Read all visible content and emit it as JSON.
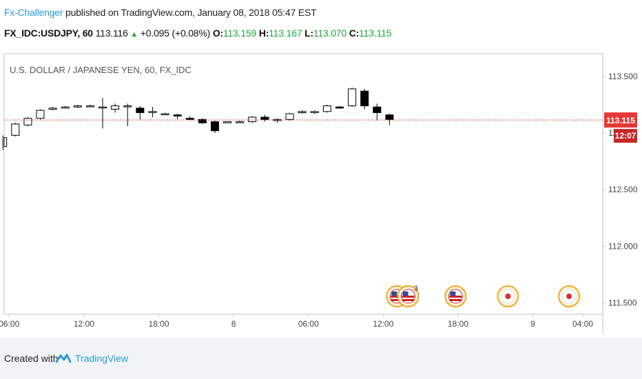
{
  "header": {
    "author": "Fx-Challenger",
    "published_text": "published on TradingView.com, January 08, 2018 05:47 EST"
  },
  "ticker": {
    "symbol_interval": "FX_IDC:USDJPY, 60",
    "last": "113.116",
    "change_arrow": "▲",
    "change": "+0.095 (+0.08%)",
    "o_label": "O:",
    "o_value": "113.159",
    "h_label": "H:",
    "h_value": "113.167",
    "l_label": "L:",
    "l_value": "113.070",
    "c_label": "C:",
    "c_value": "113.115"
  },
  "colors": {
    "accent": "#2a9ad4",
    "up": "#1fa637",
    "price_line": "#e53935",
    "candle_down": "#000000",
    "candle_up": "#ffffff",
    "event_ring": "#f5a623"
  },
  "chart_data": {
    "type": "candlestick",
    "title": "U.S. DOLLAR / JAPANESE YEN, 60, FX_IDC",
    "y_ticks": [
      "113.500",
      "113.000",
      "112.500",
      "112.000",
      "111.500"
    ],
    "y_tick_values": [
      113.5,
      113.0,
      112.5,
      112.0,
      111.5
    ],
    "ylim": [
      111.4,
      113.7
    ],
    "x_ticks": [
      "06:00",
      "12:00",
      "18:00",
      "8",
      "06:00",
      "12:00",
      "18:00",
      "9",
      "04:00"
    ],
    "x_tick_hours": [
      6,
      12,
      18,
      24,
      30,
      36,
      42,
      48,
      52
    ],
    "xlim": [
      5.6,
      53.6
    ],
    "last_price_label": "113.115",
    "last_price": 113.115,
    "countdown_label": "12:07",
    "grid": false,
    "candles": [
      {
        "t": 5.5,
        "o": 112.88,
        "h": 112.98,
        "l": 112.85,
        "c": 112.96
      },
      {
        "t": 6.5,
        "o": 112.98,
        "h": 113.09,
        "l": 112.97,
        "c": 113.08
      },
      {
        "t": 7.5,
        "o": 113.07,
        "h": 113.14,
        "l": 113.06,
        "c": 113.13
      },
      {
        "t": 8.5,
        "o": 113.13,
        "h": 113.21,
        "l": 113.12,
        "c": 113.2
      },
      {
        "t": 9.5,
        "o": 113.21,
        "h": 113.23,
        "l": 113.2,
        "c": 113.22
      },
      {
        "t": 10.5,
        "o": 113.22,
        "h": 113.24,
        "l": 113.22,
        "c": 113.23
      },
      {
        "t": 11.5,
        "o": 113.23,
        "h": 113.25,
        "l": 113.22,
        "c": 113.24
      },
      {
        "t": 12.5,
        "o": 113.24,
        "h": 113.25,
        "l": 113.23,
        "c": 113.24
      },
      {
        "t": 13.5,
        "o": 113.23,
        "h": 113.31,
        "l": 113.04,
        "c": 113.23
      },
      {
        "t": 14.5,
        "o": 113.21,
        "h": 113.26,
        "l": 113.18,
        "c": 113.24
      },
      {
        "t": 15.5,
        "o": 113.24,
        "h": 113.26,
        "l": 113.06,
        "c": 113.24
      },
      {
        "t": 16.5,
        "o": 113.22,
        "h": 113.24,
        "l": 113.12,
        "c": 113.18
      },
      {
        "t": 17.5,
        "o": 113.19,
        "h": 113.23,
        "l": 113.14,
        "c": 113.19
      },
      {
        "t": 18.5,
        "o": 113.17,
        "h": 113.18,
        "l": 113.16,
        "c": 113.17
      },
      {
        "t": 19.5,
        "o": 113.16,
        "h": 113.17,
        "l": 113.12,
        "c": 113.15
      },
      {
        "t": 20.5,
        "o": 113.13,
        "h": 113.15,
        "l": 113.11,
        "c": 113.12
      },
      {
        "t": 21.5,
        "o": 113.12,
        "h": 113.13,
        "l": 113.08,
        "c": 113.09
      },
      {
        "t": 22.5,
        "o": 113.1,
        "h": 113.11,
        "l": 113.0,
        "c": 113.02
      },
      {
        "t": 23.5,
        "o": 113.09,
        "h": 113.1,
        "l": 113.09,
        "c": 113.1
      },
      {
        "t": 24.5,
        "o": 113.1,
        "h": 113.11,
        "l": 113.09,
        "c": 113.1
      },
      {
        "t": 25.5,
        "o": 113.1,
        "h": 113.15,
        "l": 113.09,
        "c": 113.14
      },
      {
        "t": 26.5,
        "o": 113.14,
        "h": 113.16,
        "l": 113.1,
        "c": 113.12
      },
      {
        "t": 27.5,
        "o": 113.11,
        "h": 113.13,
        "l": 113.09,
        "c": 113.12
      },
      {
        "t": 28.5,
        "o": 113.12,
        "h": 113.18,
        "l": 113.11,
        "c": 113.17
      },
      {
        "t": 29.5,
        "o": 113.18,
        "h": 113.2,
        "l": 113.17,
        "c": 113.19
      },
      {
        "t": 30.5,
        "o": 113.18,
        "h": 113.2,
        "l": 113.17,
        "c": 113.19
      },
      {
        "t": 31.5,
        "o": 113.19,
        "h": 113.25,
        "l": 113.18,
        "c": 113.24
      },
      {
        "t": 32.5,
        "o": 113.23,
        "h": 113.24,
        "l": 113.22,
        "c": 113.22
      },
      {
        "t": 33.5,
        "o": 113.24,
        "h": 113.4,
        "l": 113.23,
        "c": 113.39
      },
      {
        "t": 34.5,
        "o": 113.37,
        "h": 113.39,
        "l": 113.21,
        "c": 113.24
      },
      {
        "t": 35.5,
        "o": 113.23,
        "h": 113.26,
        "l": 113.11,
        "c": 113.18
      },
      {
        "t": 36.5,
        "o": 113.16,
        "h": 113.17,
        "l": 113.07,
        "c": 113.12
      }
    ],
    "event_markers": [
      {
        "t": 37.1,
        "kind": "flag-us",
        "count": ""
      },
      {
        "t": 38.0,
        "kind": "flag-us",
        "count": "3"
      },
      {
        "t": 41.8,
        "kind": "flag-us",
        "count": ""
      },
      {
        "t": 46.0,
        "kind": "flag-jp",
        "count": ""
      },
      {
        "t": 50.9,
        "kind": "flag-jp",
        "count": ""
      }
    ]
  },
  "footer": {
    "created_with": "Created with",
    "brand": "TradingView"
  }
}
